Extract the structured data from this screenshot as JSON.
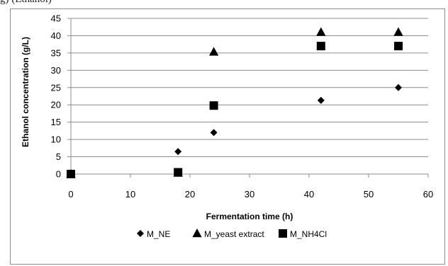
{
  "caption": "g) (Ethanol)",
  "chart_data": {
    "type": "scatter",
    "title": "",
    "xlabel": "Fermentation time (h)",
    "ylabel": "Ethanol concentration  (g/L)",
    "xlim": [
      0,
      60
    ],
    "ylim": [
      0,
      45
    ],
    "xticks": [
      0,
      10,
      20,
      30,
      40,
      50,
      60
    ],
    "yticks": [
      0,
      5,
      10,
      15,
      20,
      25,
      30,
      35,
      40,
      45
    ],
    "grid": "horizontal",
    "legend_position": "bottom",
    "series": [
      {
        "name": "M_NE",
        "marker": "diamond",
        "color": "#000000",
        "x": [
          0,
          18,
          24,
          42,
          55
        ],
        "y": [
          0,
          6.5,
          12,
          21.3,
          25
        ]
      },
      {
        "name": "M_yeast extract",
        "marker": "triangle",
        "color": "#000000",
        "x": [
          0,
          18,
          24,
          42,
          55
        ],
        "y": [
          0,
          0.3,
          35.3,
          41,
          41
        ]
      },
      {
        "name": "M_NH4Cl",
        "marker": "square",
        "color": "#000000",
        "x": [
          0,
          18,
          24,
          42,
          55
        ],
        "y": [
          0,
          0.5,
          19.8,
          37,
          37
        ]
      }
    ]
  }
}
